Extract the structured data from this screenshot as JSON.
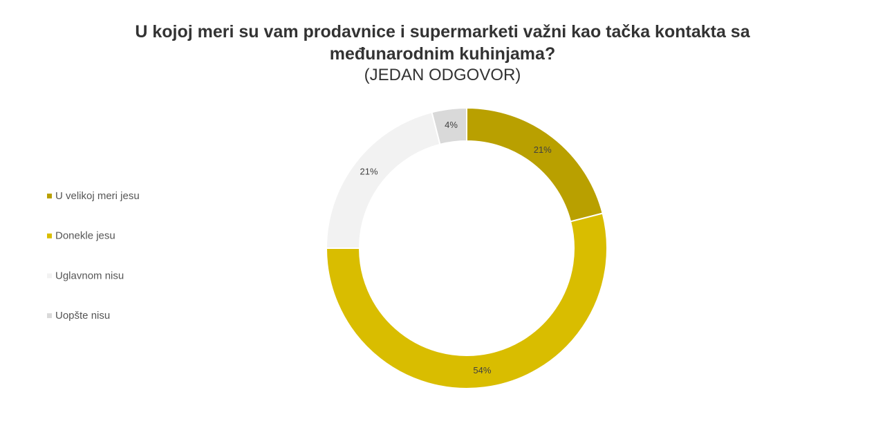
{
  "chart_data": {
    "type": "donut",
    "title": "U kojoj meri su vam prodavnice i supermarketi važni kao tačka kontakta sa međunarodnim kuhinjama?",
    "subtitle": "(JEDAN ODGOVOR)",
    "categories": [
      "U velikoj meri jesu",
      "Donekle jesu",
      "Uglavnom nisu",
      "Uopšte nisu"
    ],
    "values": [
      21,
      54,
      21,
      4
    ],
    "value_labels": [
      "21%",
      "54%",
      "21%",
      "4%"
    ],
    "colors": [
      "#b9a000",
      "#d9bd00",
      "#f2f2f2",
      "#d9d9d9"
    ],
    "legend": "left"
  }
}
